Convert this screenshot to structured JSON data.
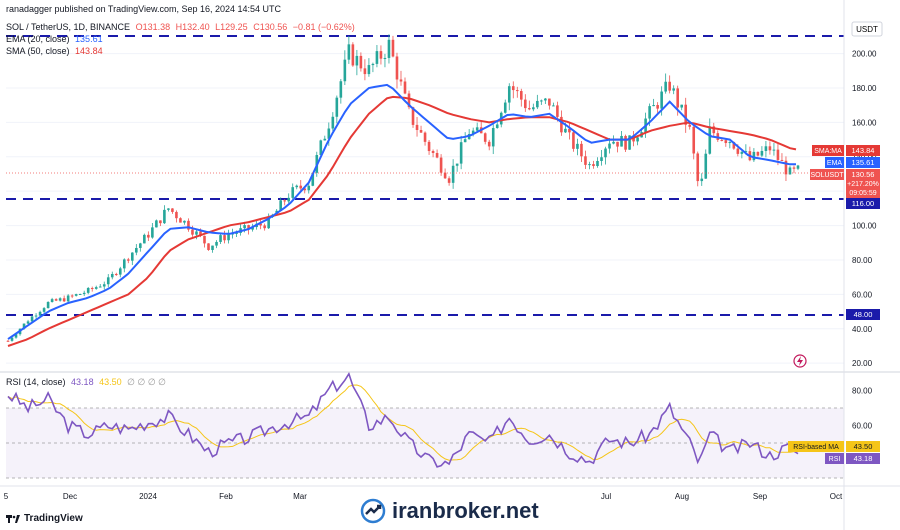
{
  "header": {
    "published": "ranadagger published on TradingView.com, Sep 16, 2024 14:54 UTC",
    "symbol": "SOL / TetherUS, 1D, BINANCE",
    "ohlc": {
      "o": "O131.38",
      "h": "H132.40",
      "l": "L129.25",
      "c": "C130.56",
      "chg": "−0.81 (−0.62%)"
    },
    "ema_label": "EMA (20, close)",
    "ema_value": "135.61",
    "sma_label": "SMA (50, close)",
    "sma_value": "143.84",
    "rsi_label": "RSI (14, close)",
    "rsi_value": "43.18",
    "rsi_ma_value": "43.50",
    "rsi_extra": "∅ ∅ ∅ ∅"
  },
  "price_axis": {
    "currency": "USDT",
    "ticks": [
      "200.00",
      "180.00",
      "160.00",
      "140.00",
      "120.00",
      "100.00",
      "80.00",
      "60.00",
      "40.00",
      "20.00"
    ],
    "tags": {
      "sma": {
        "label": "SMA:MA",
        "value": "143.84"
      },
      "ema": {
        "label": "EMA",
        "value": "135.61"
      },
      "sol": {
        "label": "SOLUSDT",
        "value": "130.56",
        "extra1": "+217.20%",
        "extra2": "09:05:59"
      },
      "support1": "116.00",
      "support2": "48.00"
    }
  },
  "rsi_axis": {
    "ticks": [
      "80.00",
      "60.00",
      "40.00"
    ],
    "tags": {
      "ma": {
        "label": "RSI-based MA",
        "value": "43.50"
      },
      "rsi": {
        "label": "RSI",
        "value": "43.18"
      }
    }
  },
  "time_axis": [
    "5",
    "Dec",
    "2024",
    "Feb",
    "Mar",
    "Jul",
    "Aug",
    "Sep",
    "Oct"
  ],
  "footer": {
    "brand": "TradingView",
    "watermark": "iranbroker.net"
  },
  "colors": {
    "up": "#26a69a",
    "down": "#ef5350",
    "ema": "#2962ff",
    "sma": "#e53935",
    "support": "#1a1aaa",
    "rsi": "#7e57c2",
    "rsi_ma": "#f5c518"
  },
  "chart_data": {
    "type": "candlestick",
    "x_range": [
      "2023-11-01",
      "2024-09-16"
    ],
    "y_range": [
      20,
      210
    ],
    "horizontal_levels": [
      210,
      116,
      48
    ],
    "price_path": [
      [
        0,
        33
      ],
      [
        10,
        45
      ],
      [
        20,
        55
      ],
      [
        30,
        58
      ],
      [
        40,
        62
      ],
      [
        50,
        68
      ],
      [
        60,
        82
      ],
      [
        70,
        95
      ],
      [
        80,
        110
      ],
      [
        90,
        100
      ],
      [
        100,
        88
      ],
      [
        110,
        95
      ],
      [
        120,
        98
      ],
      [
        130,
        102
      ],
      [
        140,
        118
      ],
      [
        150,
        125
      ],
      [
        160,
        160
      ],
      [
        170,
        200
      ],
      [
        180,
        190
      ],
      [
        190,
        205
      ],
      [
        200,
        165
      ],
      [
        210,
        145
      ],
      [
        220,
        128
      ],
      [
        230,
        155
      ],
      [
        240,
        150
      ],
      [
        250,
        182
      ],
      [
        260,
        168
      ],
      [
        270,
        172
      ],
      [
        280,
        150
      ],
      [
        290,
        135
      ],
      [
        300,
        150
      ],
      [
        310,
        148
      ],
      [
        320,
        165
      ],
      [
        330,
        182
      ],
      [
        340,
        155
      ],
      [
        345,
        118
      ],
      [
        350,
        155
      ],
      [
        360,
        150
      ],
      [
        370,
        138
      ],
      [
        380,
        145
      ],
      [
        390,
        130
      ],
      [
        395,
        132
      ]
    ],
    "ema_path": [
      [
        0,
        34
      ],
      [
        10,
        42
      ],
      [
        20,
        50
      ],
      [
        30,
        55
      ],
      [
        40,
        58
      ],
      [
        50,
        63
      ],
      [
        60,
        72
      ],
      [
        70,
        85
      ],
      [
        80,
        98
      ],
      [
        90,
        99
      ],
      [
        100,
        96
      ],
      [
        110,
        95
      ],
      [
        120,
        98
      ],
      [
        130,
        104
      ],
      [
        140,
        112
      ],
      [
        150,
        125
      ],
      [
        160,
        150
      ],
      [
        170,
        170
      ],
      [
        180,
        180
      ],
      [
        190,
        182
      ],
      [
        200,
        170
      ],
      [
        210,
        160
      ],
      [
        220,
        150
      ],
      [
        230,
        152
      ],
      [
        240,
        158
      ],
      [
        250,
        165
      ],
      [
        260,
        163
      ],
      [
        270,
        165
      ],
      [
        280,
        157
      ],
      [
        290,
        148
      ],
      [
        300,
        150
      ],
      [
        310,
        150
      ],
      [
        320,
        160
      ],
      [
        330,
        172
      ],
      [
        340,
        160
      ],
      [
        350,
        152
      ],
      [
        360,
        150
      ],
      [
        370,
        140
      ],
      [
        380,
        138
      ],
      [
        390,
        135.6
      ],
      [
        395,
        135.6
      ]
    ],
    "sma_path": [
      [
        0,
        30
      ],
      [
        10,
        34
      ],
      [
        20,
        40
      ],
      [
        30,
        45
      ],
      [
        40,
        50
      ],
      [
        50,
        55
      ],
      [
        60,
        60
      ],
      [
        70,
        70
      ],
      [
        80,
        85
      ],
      [
        90,
        92
      ],
      [
        100,
        96
      ],
      [
        110,
        100
      ],
      [
        120,
        102
      ],
      [
        130,
        105
      ],
      [
        140,
        108
      ],
      [
        150,
        115
      ],
      [
        160,
        130
      ],
      [
        170,
        150
      ],
      [
        180,
        165
      ],
      [
        190,
        175
      ],
      [
        200,
        174
      ],
      [
        210,
        170
      ],
      [
        220,
        165
      ],
      [
        230,
        162
      ],
      [
        240,
        160
      ],
      [
        250,
        162
      ],
      [
        260,
        163
      ],
      [
        270,
        163
      ],
      [
        280,
        160
      ],
      [
        290,
        155
      ],
      [
        300,
        150
      ],
      [
        310,
        150
      ],
      [
        320,
        155
      ],
      [
        330,
        158
      ],
      [
        340,
        160
      ],
      [
        350,
        157
      ],
      [
        360,
        155
      ],
      [
        370,
        153
      ],
      [
        380,
        150
      ],
      [
        390,
        145
      ],
      [
        395,
        143.84
      ]
    ],
    "rsi_path": [
      [
        0,
        78
      ],
      [
        10,
        70
      ],
      [
        20,
        75
      ],
      [
        30,
        60
      ],
      [
        40,
        55
      ],
      [
        50,
        60
      ],
      [
        60,
        58
      ],
      [
        70,
        62
      ],
      [
        80,
        65
      ],
      [
        90,
        55
      ],
      [
        100,
        45
      ],
      [
        110,
        50
      ],
      [
        120,
        53
      ],
      [
        130,
        58
      ],
      [
        140,
        62
      ],
      [
        150,
        65
      ],
      [
        160,
        80
      ],
      [
        170,
        88
      ],
      [
        180,
        60
      ],
      [
        190,
        65
      ],
      [
        200,
        50
      ],
      [
        210,
        40
      ],
      [
        220,
        38
      ],
      [
        230,
        55
      ],
      [
        240,
        50
      ],
      [
        250,
        65
      ],
      [
        260,
        52
      ],
      [
        270,
        55
      ],
      [
        280,
        45
      ],
      [
        290,
        40
      ],
      [
        300,
        52
      ],
      [
        310,
        50
      ],
      [
        320,
        55
      ],
      [
        330,
        70
      ],
      [
        340,
        50
      ],
      [
        345,
        38
      ],
      [
        350,
        55
      ],
      [
        360,
        45
      ],
      [
        370,
        50
      ],
      [
        380,
        43
      ],
      [
        390,
        48
      ],
      [
        395,
        43.18
      ]
    ]
  }
}
